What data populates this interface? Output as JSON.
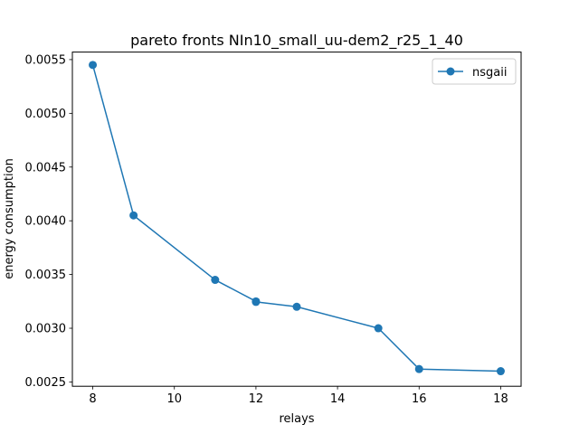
{
  "chart_data": {
    "type": "line",
    "title": "pareto fronts NIn10_small_uu-dem2_r25_1_40",
    "xlabel": "relays",
    "ylabel": "energy consumption",
    "xlim": [
      7.5,
      18.5
    ],
    "ylim": [
      0.00246,
      0.00557
    ],
    "xticks": [
      8,
      10,
      12,
      14,
      16,
      18
    ],
    "xtick_labels": [
      "8",
      "10",
      "12",
      "14",
      "16",
      "18"
    ],
    "yticks": [
      0.0025,
      0.003,
      0.0035,
      0.004,
      0.0045,
      0.005,
      0.0055
    ],
    "ytick_labels": [
      "0.0025",
      "0.0030",
      "0.0035",
      "0.0040",
      "0.0045",
      "0.0050",
      "0.0055"
    ],
    "grid": false,
    "legend_position": "top-right",
    "series": [
      {
        "name": "nsgaii",
        "color": "#1f77b4",
        "marker": "circle",
        "x": [
          8,
          9,
          11,
          12,
          12,
          13,
          15,
          16,
          18
        ],
        "y": [
          0.00545,
          0.00405,
          0.00345,
          0.00325,
          0.003245,
          0.0032,
          0.003,
          0.00262,
          0.0026
        ]
      }
    ]
  }
}
